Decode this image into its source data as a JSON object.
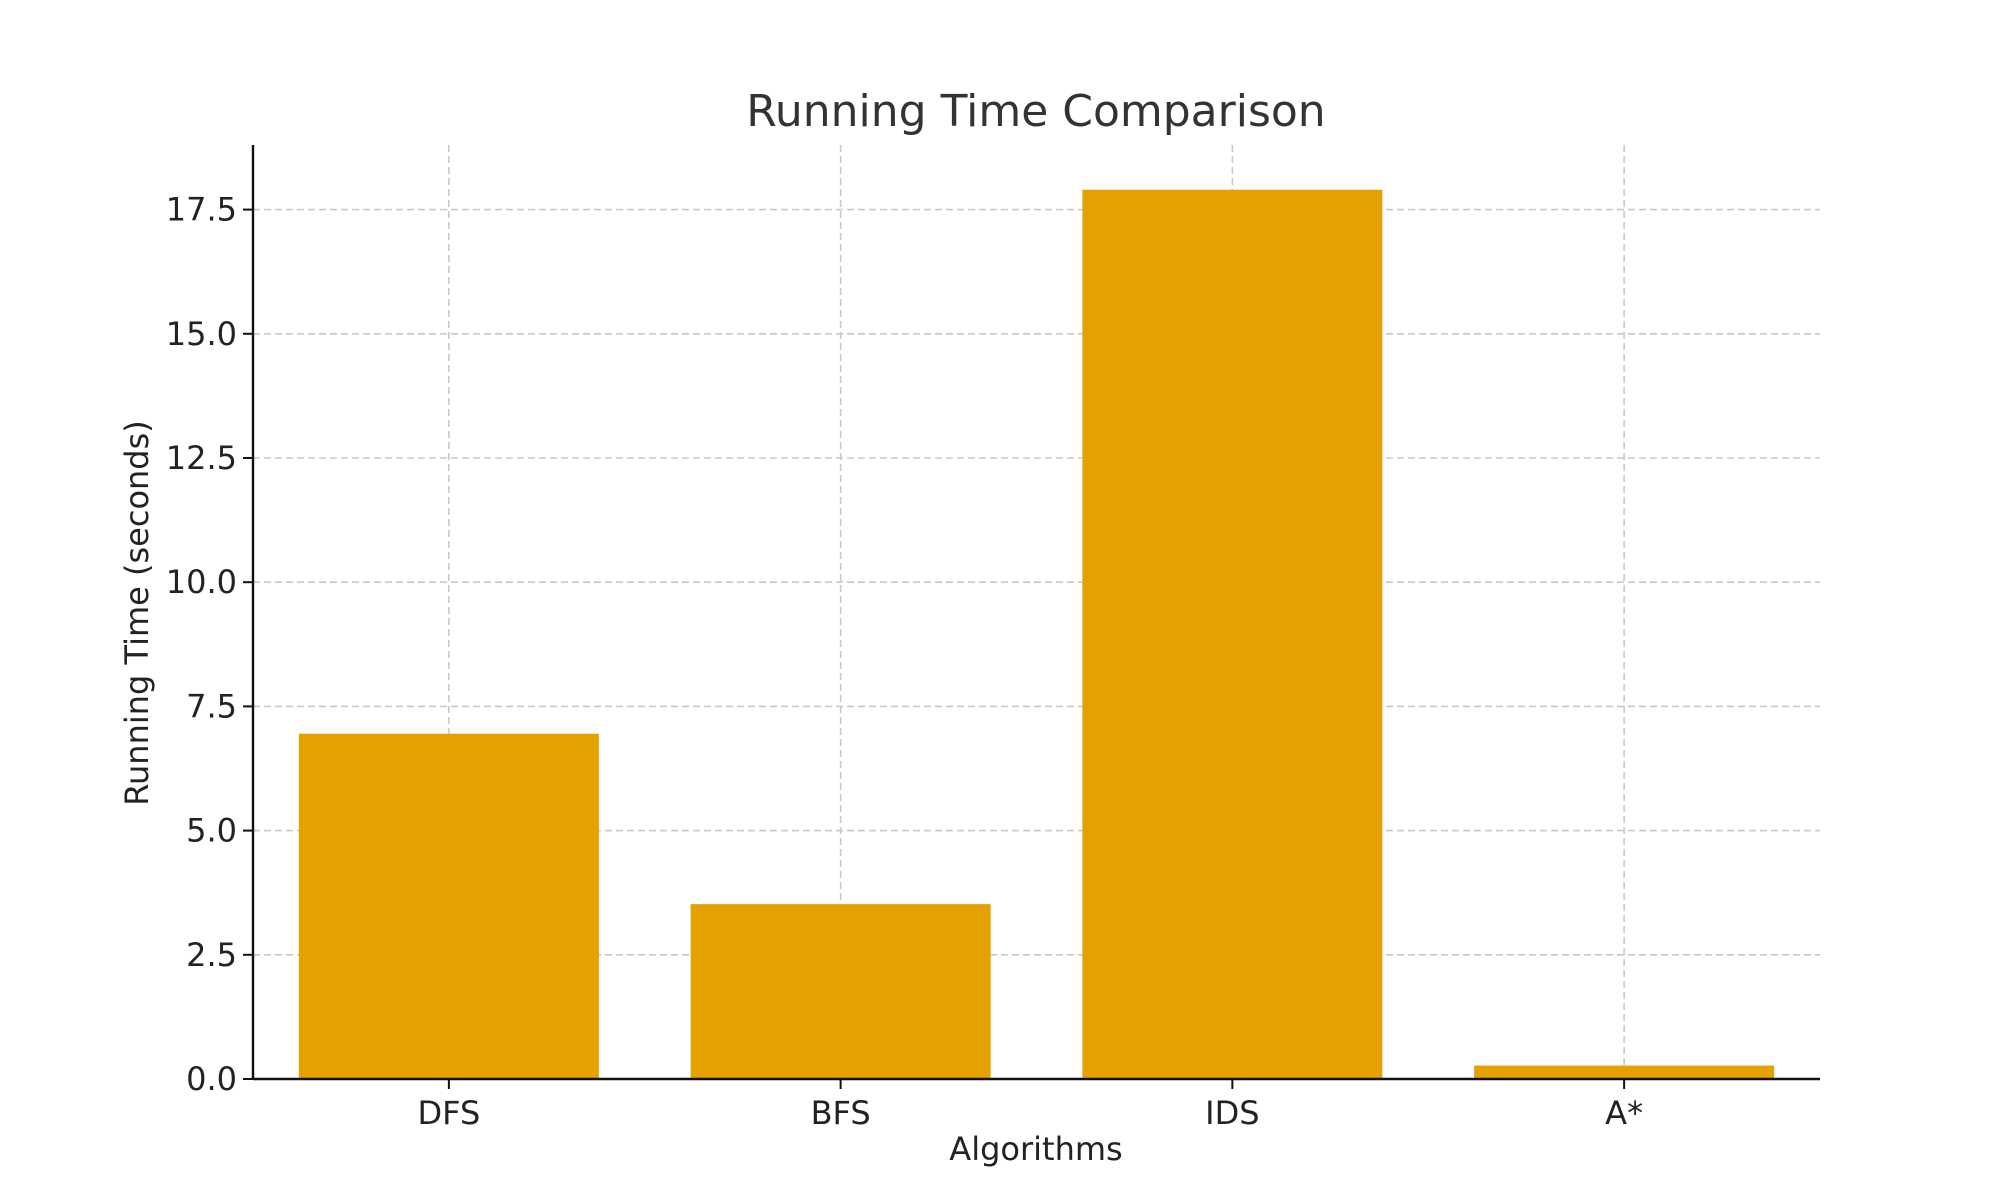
{
  "chart_data": {
    "type": "bar",
    "title": "Running Time Comparison",
    "xlabel": "Algorithms",
    "ylabel": "Running Time (seconds)",
    "categories": [
      "DFS",
      "BFS",
      "IDS",
      "A*"
    ],
    "values": [
      6.95,
      3.52,
      17.9,
      0.27
    ],
    "ylim": [
      0,
      18.8
    ],
    "yticks": [
      "0.0",
      "2.5",
      "5.0",
      "7.5",
      "10.0",
      "12.5",
      "15.0",
      "17.5"
    ],
    "grid": true,
    "bar_color": "#E5A100"
  }
}
